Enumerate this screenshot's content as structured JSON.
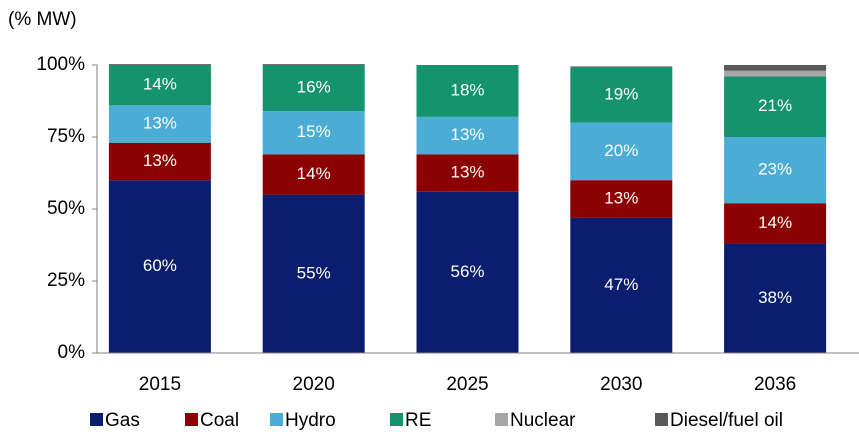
{
  "chart_data": {
    "type": "stacked_bar",
    "y_axis_label": "(% MW)",
    "categories": [
      "2015",
      "2020",
      "2025",
      "2030",
      "2036"
    ],
    "series": [
      {
        "name": "Gas",
        "color": "#0b1d6f",
        "values": [
          60,
          55,
          56,
          47,
          38
        ],
        "value_labels": [
          "60%",
          "55%",
          "56%",
          "47%",
          "38%"
        ]
      },
      {
        "name": "Coal",
        "color": "#8b0000",
        "values": [
          13,
          14,
          13,
          13,
          14
        ],
        "value_labels": [
          "13%",
          "14%",
          "13%",
          "13%",
          "14%"
        ]
      },
      {
        "name": "Hydro",
        "color": "#4bacd6",
        "values": [
          13,
          15,
          13,
          20,
          23
        ],
        "value_labels": [
          "13%",
          "15%",
          "13%",
          "20%",
          "23%"
        ]
      },
      {
        "name": "RE",
        "color": "#14936c",
        "values": [
          14,
          16,
          18,
          19,
          21
        ],
        "value_labels": [
          "14%",
          "16%",
          "18%",
          "19%",
          "21%"
        ]
      },
      {
        "name": "Nuclear",
        "color": "#a6a6a6",
        "values": [
          0,
          0,
          0,
          0,
          2
        ]
      },
      {
        "name": "Diesel/fuel oil",
        "color": "#595959",
        "values": [
          0.3,
          0.3,
          0,
          0.5,
          2
        ]
      }
    ],
    "ylim": [
      0,
      100
    ],
    "yticks": [
      {
        "value": 0,
        "label": "0%"
      },
      {
        "value": 25,
        "label": "25%"
      },
      {
        "value": 50,
        "label": "50%"
      },
      {
        "value": 75,
        "label": "75%"
      },
      {
        "value": 100,
        "label": "100%"
      }
    ],
    "legend": "bottom"
  }
}
